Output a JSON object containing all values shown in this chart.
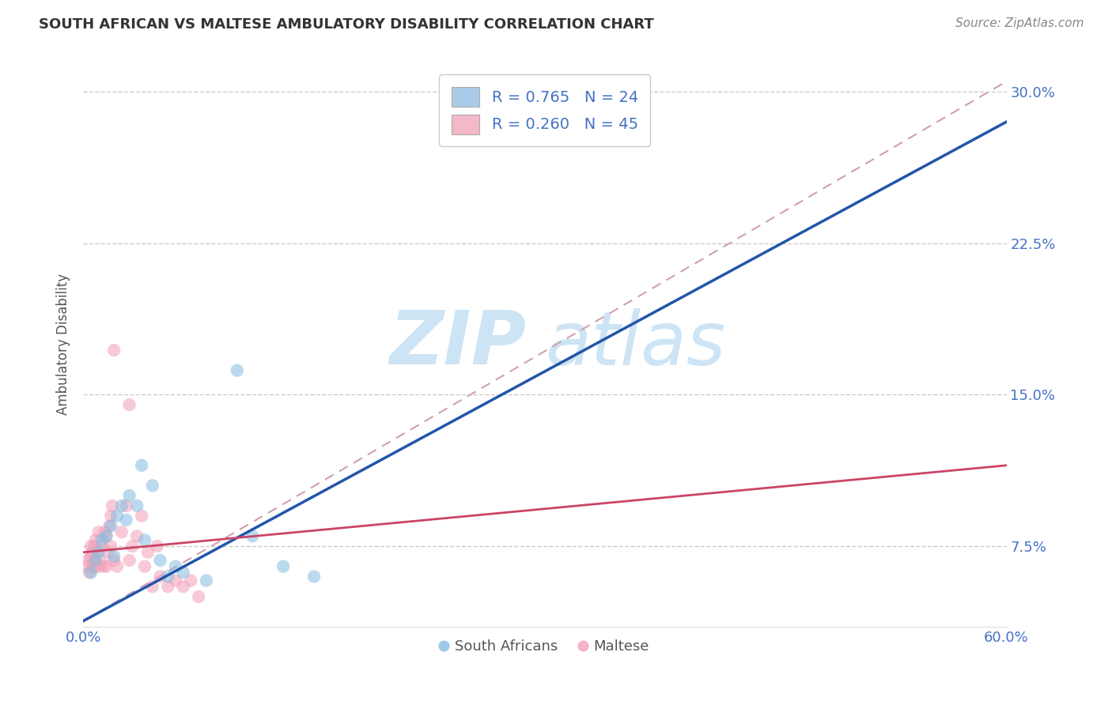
{
  "title": "SOUTH AFRICAN VS MALTESE AMBULATORY DISABILITY CORRELATION CHART",
  "source_text": "Source: ZipAtlas.com",
  "ylabel": "Ambulatory Disability",
  "south_africans_label": "South Africans",
  "maltese_label": "Maltese",
  "legend_r_blue": "R = 0.765",
  "legend_n_blue": "N = 24",
  "legend_r_pink": "R = 0.260",
  "legend_n_pink": "N = 45",
  "blue_scatter_color": "#85bde0",
  "pink_scatter_color": "#f4a0b8",
  "blue_line_color": "#2255aa",
  "pink_line_color": "#cc4466",
  "dashed_line_color": "#d0a0b0",
  "watermark_zip": "ZIP",
  "watermark_atlas": "atlas",
  "watermark_color": "#cde4f5",
  "xlim": [
    0.0,
    0.6
  ],
  "ylim": [
    0.035,
    0.315
  ],
  "yticks": [
    0.075,
    0.15,
    0.225,
    0.3
  ],
  "ytick_labels": [
    "7.5%",
    "15.0%",
    "22.5%",
    "30.0%"
  ],
  "tick_color": "#4472c4",
  "blue_line_x0": 0.0,
  "blue_line_y0": 0.038,
  "blue_line_x1": 0.6,
  "blue_line_y1": 0.285,
  "pink_line_x0": 0.0,
  "pink_line_y0": 0.072,
  "pink_line_x1": 0.6,
  "pink_line_y1": 0.115,
  "dash_line_x0": 0.0,
  "dash_line_y0": 0.038,
  "dash_line_x1": 0.6,
  "dash_line_y1": 0.305,
  "blue_scatter_x": [
    0.005,
    0.008,
    0.01,
    0.012,
    0.015,
    0.018,
    0.02,
    0.022,
    0.025,
    0.028,
    0.03,
    0.035,
    0.038,
    0.04,
    0.045,
    0.05,
    0.055,
    0.06,
    0.065,
    0.08,
    0.1,
    0.11,
    0.13,
    0.15
  ],
  "blue_scatter_y": [
    0.062,
    0.068,
    0.072,
    0.078,
    0.08,
    0.085,
    0.07,
    0.09,
    0.095,
    0.088,
    0.1,
    0.095,
    0.115,
    0.078,
    0.105,
    0.068,
    0.06,
    0.065,
    0.062,
    0.058,
    0.162,
    0.08,
    0.065,
    0.06
  ],
  "pink_scatter_x": [
    0.002,
    0.003,
    0.004,
    0.005,
    0.005,
    0.006,
    0.006,
    0.007,
    0.007,
    0.008,
    0.008,
    0.009,
    0.01,
    0.01,
    0.011,
    0.012,
    0.013,
    0.014,
    0.015,
    0.015,
    0.016,
    0.017,
    0.018,
    0.018,
    0.019,
    0.02,
    0.02,
    0.022,
    0.025,
    0.028,
    0.03,
    0.03,
    0.032,
    0.035,
    0.038,
    0.04,
    0.042,
    0.045,
    0.048,
    0.05,
    0.055,
    0.06,
    0.065,
    0.07,
    0.075
  ],
  "pink_scatter_y": [
    0.065,
    0.068,
    0.062,
    0.07,
    0.075,
    0.065,
    0.072,
    0.068,
    0.075,
    0.065,
    0.078,
    0.072,
    0.065,
    0.082,
    0.068,
    0.075,
    0.065,
    0.082,
    0.065,
    0.08,
    0.072,
    0.085,
    0.075,
    0.09,
    0.095,
    0.068,
    0.172,
    0.065,
    0.082,
    0.095,
    0.068,
    0.145,
    0.075,
    0.08,
    0.09,
    0.065,
    0.072,
    0.055,
    0.075,
    0.06,
    0.055,
    0.058,
    0.055,
    0.058,
    0.05
  ],
  "background_color": "#ffffff",
  "grid_color": "#cccccc",
  "legend_patch_blue": "#a8cce8",
  "legend_patch_pink": "#f4b8c8"
}
